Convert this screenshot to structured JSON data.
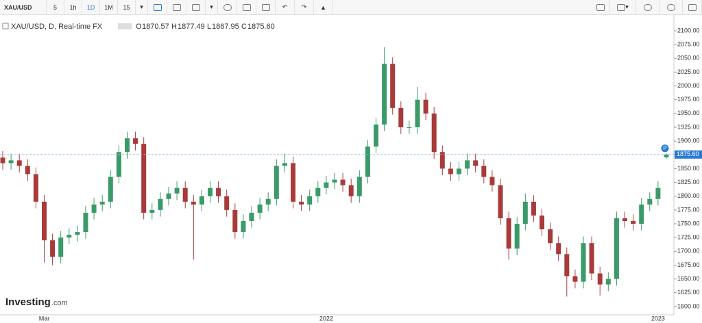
{
  "toolbar": {
    "symbol": "XAU/USD",
    "intervals": [
      "5",
      "1h",
      "1D",
      "1M",
      "15"
    ]
  },
  "logo": {
    "name": "Investing",
    "suffix": ".com"
  },
  "chart_data": {
    "type": "candlestick",
    "title": "XAU/USD, D, Real-time FX",
    "ohlc_labels": {
      "open": "O",
      "high": "H",
      "low": "L",
      "close": "C"
    },
    "last_price_label": "1875.60",
    "marker_label": "P",
    "up_color": "#3a9a68",
    "down_color": "#a83a3a",
    "price_line_color": "#8fb6e6",
    "categories": [
      null,
      null,
      null,
      null,
      null,
      "Mar",
      null,
      null,
      null,
      null,
      null,
      null,
      null,
      null,
      null,
      null,
      null,
      null,
      null,
      null,
      null,
      null,
      null,
      null,
      null,
      null,
      null,
      null,
      null,
      null,
      null,
      null,
      null,
      null,
      null,
      null,
      null,
      null,
      null,
      "2022",
      null,
      null,
      null,
      null,
      null,
      null,
      null,
      null,
      null,
      null,
      null,
      null,
      null,
      null,
      null,
      null,
      null,
      null,
      null,
      null,
      null,
      null,
      null,
      null,
      null,
      null,
      null,
      null,
      null,
      null,
      null,
      null,
      null,
      null,
      null,
      null,
      null,
      null,
      null,
      "2023",
      null
    ],
    "open": [
      1870,
      1860,
      1865,
      1855,
      1840,
      1790,
      1720,
      1690,
      1725,
      1730,
      1735,
      1770,
      1785,
      1790,
      1835,
      1880,
      1905,
      1895,
      1770,
      1775,
      1795,
      1805,
      1815,
      1790,
      1785,
      1800,
      1815,
      1800,
      1775,
      1735,
      1755,
      1770,
      1785,
      1795,
      1855,
      1860,
      1790,
      1785,
      1800,
      1815,
      1825,
      1830,
      1820,
      1800,
      1835,
      1890,
      1930,
      2040,
      1960,
      1925,
      1925,
      1975,
      1950,
      1880,
      1850,
      1840,
      1850,
      1865,
      1855,
      1835,
      1820,
      1760,
      1705,
      1750,
      1790,
      1765,
      1740,
      1715,
      1695,
      1655,
      1645,
      1715,
      1660,
      1640,
      1650,
      1760,
      1755,
      1750,
      1785,
      1795,
      1870.57
    ],
    "high": [
      1882,
      1877,
      1877,
      1867,
      1852,
      1802,
      1732,
      1737,
      1742,
      1747,
      1782,
      1797,
      1802,
      1847,
      1892,
      1917,
      1917,
      1907,
      1787,
      1807,
      1817,
      1827,
      1827,
      1802,
      1812,
      1827,
      1827,
      1812,
      1787,
      1767,
      1782,
      1797,
      1807,
      1867,
      1877,
      1872,
      1802,
      1812,
      1827,
      1837,
      1842,
      1842,
      1832,
      1847,
      1902,
      1942,
      2070,
      2052,
      1972,
      1937,
      1998,
      1987,
      1962,
      1892,
      1862,
      1862,
      1877,
      1877,
      1867,
      1847,
      1832,
      1772,
      1762,
      1805,
      1802,
      1777,
      1752,
      1727,
      1707,
      1667,
      1727,
      1727,
      1672,
      1662,
      1772,
      1772,
      1767,
      1797,
      1807,
      1827,
      1877.49
    ],
    "low": [
      1848,
      1848,
      1843,
      1828,
      1778,
      1680,
      1675,
      1678,
      1713,
      1718,
      1723,
      1758,
      1773,
      1778,
      1823,
      1868,
      1883,
      1758,
      1758,
      1763,
      1783,
      1793,
      1778,
      1685,
      1773,
      1788,
      1788,
      1763,
      1723,
      1723,
      1743,
      1758,
      1773,
      1783,
      1843,
      1778,
      1773,
      1773,
      1788,
      1803,
      1813,
      1808,
      1788,
      1788,
      1823,
      1878,
      1918,
      1948,
      1913,
      1913,
      1913,
      1938,
      1868,
      1838,
      1828,
      1828,
      1838,
      1843,
      1823,
      1808,
      1748,
      1685,
      1693,
      1738,
      1753,
      1728,
      1703,
      1683,
      1618,
      1633,
      1633,
      1648,
      1620,
      1628,
      1638,
      1743,
      1738,
      1738,
      1773,
      1783,
      1867.95
    ],
    "close": [
      1860,
      1865,
      1855,
      1840,
      1790,
      1720,
      1690,
      1725,
      1730,
      1735,
      1770,
      1785,
      1790,
      1835,
      1880,
      1905,
      1895,
      1770,
      1775,
      1795,
      1805,
      1815,
      1790,
      1785,
      1800,
      1815,
      1800,
      1775,
      1735,
      1755,
      1770,
      1785,
      1795,
      1855,
      1860,
      1790,
      1785,
      1800,
      1815,
      1825,
      1830,
      1820,
      1800,
      1835,
      1890,
      1930,
      2040,
      1960,
      1925,
      1925,
      1975,
      1950,
      1880,
      1850,
      1840,
      1850,
      1865,
      1855,
      1835,
      1820,
      1760,
      1705,
      1750,
      1790,
      1765,
      1740,
      1715,
      1695,
      1655,
      1645,
      1715,
      1660,
      1640,
      1650,
      1760,
      1755,
      1750,
      1785,
      1795,
      1815,
      1875.6
    ],
    "ylim": [
      1585,
      2126
    ],
    "yticks": [
      {
        "value": 1600,
        "label": "1600.00"
      },
      {
        "value": 1625,
        "label": "1625.00"
      },
      {
        "value": 1650,
        "label": "1650.00"
      },
      {
        "value": 1675,
        "label": "1675.00"
      },
      {
        "value": 1700,
        "label": "1700.00"
      },
      {
        "value": 1725,
        "label": "1725.00"
      },
      {
        "value": 1750,
        "label": "1750.00"
      },
      {
        "value": 1775,
        "label": "1775.00"
      },
      {
        "value": 1800,
        "label": "1800.00"
      },
      {
        "value": 1825,
        "label": "1825.00"
      },
      {
        "value": 1850,
        "label": "1850.00"
      },
      {
        "value": 1875,
        "label": "1875.00"
      },
      {
        "value": 1900,
        "label": "1900.00"
      },
      {
        "value": 1925,
        "label": "1925.00"
      },
      {
        "value": 1950,
        "label": "1950.00"
      },
      {
        "value": 1975,
        "label": "1975.00"
      },
      {
        "value": 2000,
        "label": "2000.00"
      },
      {
        "value": 2025,
        "label": "2025.00"
      },
      {
        "value": 2050,
        "label": "2050.00"
      },
      {
        "value": 2075,
        "label": "2075.00"
      },
      {
        "value": 2100,
        "label": "2100.00"
      }
    ]
  }
}
